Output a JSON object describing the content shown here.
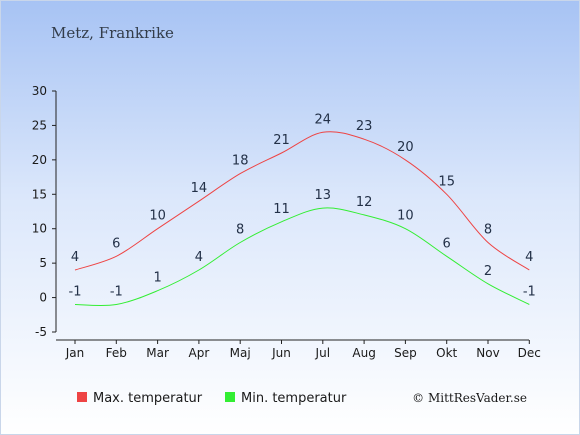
{
  "chart_data": {
    "type": "line",
    "title": "Metz, Frankrike",
    "categories": [
      "Jan",
      "Feb",
      "Mar",
      "Apr",
      "Maj",
      "Jun",
      "Jul",
      "Aug",
      "Sep",
      "Okt",
      "Nov",
      "Dec"
    ],
    "series": [
      {
        "name": "Max. temperatur",
        "color": "#ee4444",
        "values": [
          4,
          6,
          10,
          14,
          18,
          21,
          24,
          23,
          20,
          15,
          8,
          4
        ]
      },
      {
        "name": "Min. temperatur",
        "color": "#33ee33",
        "values": [
          -1,
          -1,
          1,
          4,
          8,
          11,
          13,
          12,
          10,
          6,
          2,
          -1
        ]
      }
    ],
    "ylim": [
      -5,
      30
    ],
    "yticks": [
      -5,
      0,
      5,
      10,
      15,
      20,
      25,
      30
    ],
    "xlabel": "",
    "ylabel": "",
    "grid": false,
    "legend": "bottom"
  },
  "credit": "© MittResVader.se"
}
